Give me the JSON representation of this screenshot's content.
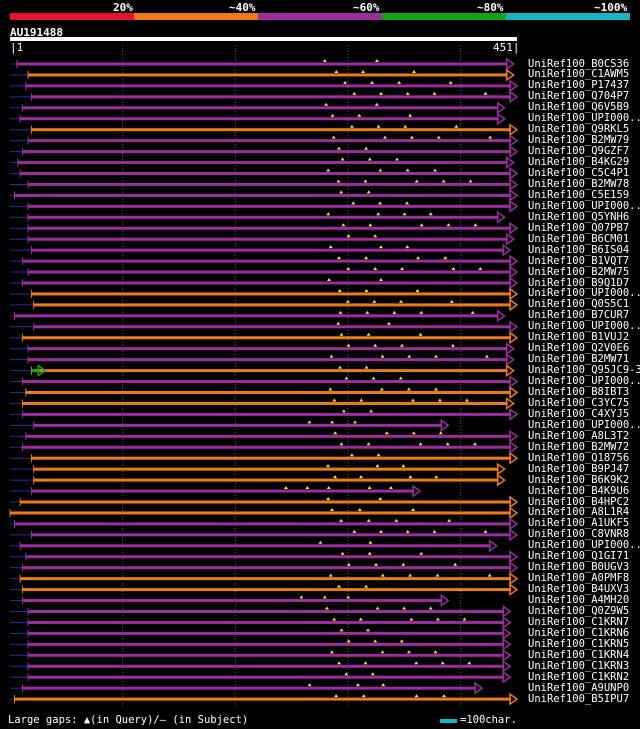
{
  "legend": {
    "labels": [
      "20%",
      "~40%",
      "~60%",
      "~80%",
      "~100%"
    ],
    "colors": [
      "#e8102e",
      "#ee7a14",
      "#9b2d9e",
      "#10a414",
      "#18b4c0"
    ]
  },
  "query": {
    "id": "AU191488",
    "start": "1",
    "end": "451",
    "length": 451
  },
  "footer": {
    "gaps_text": "Large gaps: ▲(in Query)/— (in Subject)",
    "scale_text": "=100char."
  },
  "colors": {
    "purple": "#9b2d9e",
    "orange": "#ee7a14",
    "green": "#10a414",
    "gap_line": "#2a2aa0",
    "marker": "#f5e03a",
    "grid": "#5a5a5a"
  },
  "hits": [
    {
      "id": "UniRef100_B0CS36",
      "s": 7,
      "e": 448,
      "c": "purple"
    },
    {
      "id": "UniRef100_C1AWM5",
      "s": 17,
      "e": 448,
      "c": "orange"
    },
    {
      "id": "UniRef100_P17437",
      "s": 15,
      "e": 451,
      "c": "purple"
    },
    {
      "id": "UniRef100_Q704P7",
      "s": 20,
      "e": 451,
      "c": "purple"
    },
    {
      "id": "UniRef100_Q6V5B9",
      "s": 12,
      "e": 440,
      "c": "purple"
    },
    {
      "id": "UniRef100_UPI000..",
      "s": 10,
      "e": 440,
      "c": "purple"
    },
    {
      "id": "UniRef100_Q9RKL5",
      "s": 20,
      "e": 451,
      "c": "orange"
    },
    {
      "id": "UniRef100_B2MW79",
      "s": 17,
      "e": 451,
      "c": "purple"
    },
    {
      "id": "UniRef100_Q9GZF7",
      "s": 12,
      "e": 451,
      "c": "purple"
    },
    {
      "id": "UniRef100_B4KG29",
      "s": 8,
      "e": 448,
      "c": "purple"
    },
    {
      "id": "UniRef100_C5C4P1",
      "s": 10,
      "e": 451,
      "c": "purple"
    },
    {
      "id": "UniRef100_B2MW78",
      "s": 17,
      "e": 451,
      "c": "purple"
    },
    {
      "id": "UniRef100_C5E159",
      "s": 5,
      "e": 451,
      "c": "purple"
    },
    {
      "id": "UniRef100_UPI000..",
      "s": 17,
      "e": 451,
      "c": "purple"
    },
    {
      "id": "UniRef100_Q5YNH6",
      "s": 17,
      "e": 440,
      "c": "purple"
    },
    {
      "id": "UniRef100_Q07PB7",
      "s": 17,
      "e": 451,
      "c": "purple"
    },
    {
      "id": "UniRef100_B6CM01",
      "s": 17,
      "e": 448,
      "c": "purple"
    },
    {
      "id": "UniRef100_B6IS04",
      "s": 20,
      "e": 445,
      "c": "purple"
    },
    {
      "id": "UniRef100_B1VQT7",
      "s": 12,
      "e": 451,
      "c": "purple"
    },
    {
      "id": "UniRef100_B2MW75",
      "s": 17,
      "e": 451,
      "c": "purple"
    },
    {
      "id": "UniRef100_B9Q1D7",
      "s": 12,
      "e": 451,
      "c": "purple"
    },
    {
      "id": "UniRef100_UPI000..",
      "s": 20,
      "e": 451,
      "c": "orange"
    },
    {
      "id": "UniRef100_Q0S5C1",
      "s": 22,
      "e": 451,
      "c": "orange"
    },
    {
      "id": "UniRef100_B7CUR7",
      "s": 5,
      "e": 440,
      "c": "purple"
    },
    {
      "id": "UniRef100_UPI000..",
      "s": 22,
      "e": 451,
      "c": "purple"
    },
    {
      "id": "UniRef100_B1VUJ2",
      "s": 12,
      "e": 451,
      "c": "orange"
    },
    {
      "id": "UniRef100_Q2V0E6",
      "s": 17,
      "e": 448,
      "c": "purple"
    },
    {
      "id": "UniRef100_B2MW71",
      "s": 17,
      "e": 448,
      "c": "purple"
    },
    {
      "id": "UniRef100_Q95JC9-3",
      "s": 20,
      "e": 448,
      "c": "orange",
      "pre": {
        "s": 20,
        "e": 27,
        "c": "green"
      }
    },
    {
      "id": "UniRef100_UPI000..",
      "s": 12,
      "e": 451,
      "c": "purple"
    },
    {
      "id": "UniRef100_B8IBT3",
      "s": 15,
      "e": 451,
      "c": "orange"
    },
    {
      "id": "UniRef100_C3YC75",
      "s": 12,
      "e": 448,
      "c": "orange"
    },
    {
      "id": "UniRef100_C4XYJ5",
      "s": 12,
      "e": 451,
      "c": "purple"
    },
    {
      "id": "UniRef100_UPI000..",
      "s": 22,
      "e": 390,
      "c": "purple"
    },
    {
      "id": "UniRef100_A8L3T2",
      "s": 15,
      "e": 451,
      "c": "purple"
    },
    {
      "id": "UniRef100_B2MW72",
      "s": 12,
      "e": 451,
      "c": "purple"
    },
    {
      "id": "UniRef100_Q18756",
      "s": 20,
      "e": 451,
      "c": "orange"
    },
    {
      "id": "UniRef100_B9PJ47",
      "s": 22,
      "e": 440,
      "c": "orange"
    },
    {
      "id": "UniRef100_B6K9K2",
      "s": 22,
      "e": 440,
      "c": "orange"
    },
    {
      "id": "UniRef100_B4K9U6",
      "s": 20,
      "e": 365,
      "c": "purple"
    },
    {
      "id": "UniRef100_B4HPC2",
      "s": 10,
      "e": 451,
      "c": "orange"
    },
    {
      "id": "UniRef100_A8L1R4",
      "s": 1,
      "e": 451,
      "c": "orange"
    },
    {
      "id": "UniRef100_A1UKF5",
      "s": 5,
      "e": 451,
      "c": "purple"
    },
    {
      "id": "UniRef100_C8VNR8",
      "s": 20,
      "e": 451,
      "c": "purple"
    },
    {
      "id": "UniRef100_UPI000..",
      "s": 10,
      "e": 433,
      "c": "purple"
    },
    {
      "id": "UniRef100_Q1GI71",
      "s": 15,
      "e": 451,
      "c": "purple"
    },
    {
      "id": "UniRef100_B0UGV3",
      "s": 12,
      "e": 451,
      "c": "purple"
    },
    {
      "id": "UniRef100_A0PMF8",
      "s": 10,
      "e": 451,
      "c": "orange"
    },
    {
      "id": "UniRef100_B4UXV3",
      "s": 12,
      "e": 451,
      "c": "orange"
    },
    {
      "id": "UniRef100_A4MH20",
      "s": 12,
      "e": 390,
      "c": "purple"
    },
    {
      "id": "UniRef100_Q0Z9W5",
      "s": 17,
      "e": 445,
      "c": "purple"
    },
    {
      "id": "UniRef100_C1KRN7",
      "s": 17,
      "e": 445,
      "c": "purple"
    },
    {
      "id": "UniRef100_C1KRN6",
      "s": 17,
      "e": 445,
      "c": "purple"
    },
    {
      "id": "UniRef100_C1KRN5",
      "s": 17,
      "e": 445,
      "c": "purple"
    },
    {
      "id": "UniRef100_C1KRN4",
      "s": 17,
      "e": 445,
      "c": "purple"
    },
    {
      "id": "UniRef100_C1KRN3",
      "s": 17,
      "e": 445,
      "c": "purple"
    },
    {
      "id": "UniRef100_C1KRN2",
      "s": 17,
      "e": 445,
      "c": "purple"
    },
    {
      "id": "UniRef100_A9UNP0",
      "s": 12,
      "e": 420,
      "c": "purple"
    },
    {
      "id": "UniRef100_B5IPU7",
      "s": 5,
      "e": 451,
      "c": "orange"
    }
  ]
}
